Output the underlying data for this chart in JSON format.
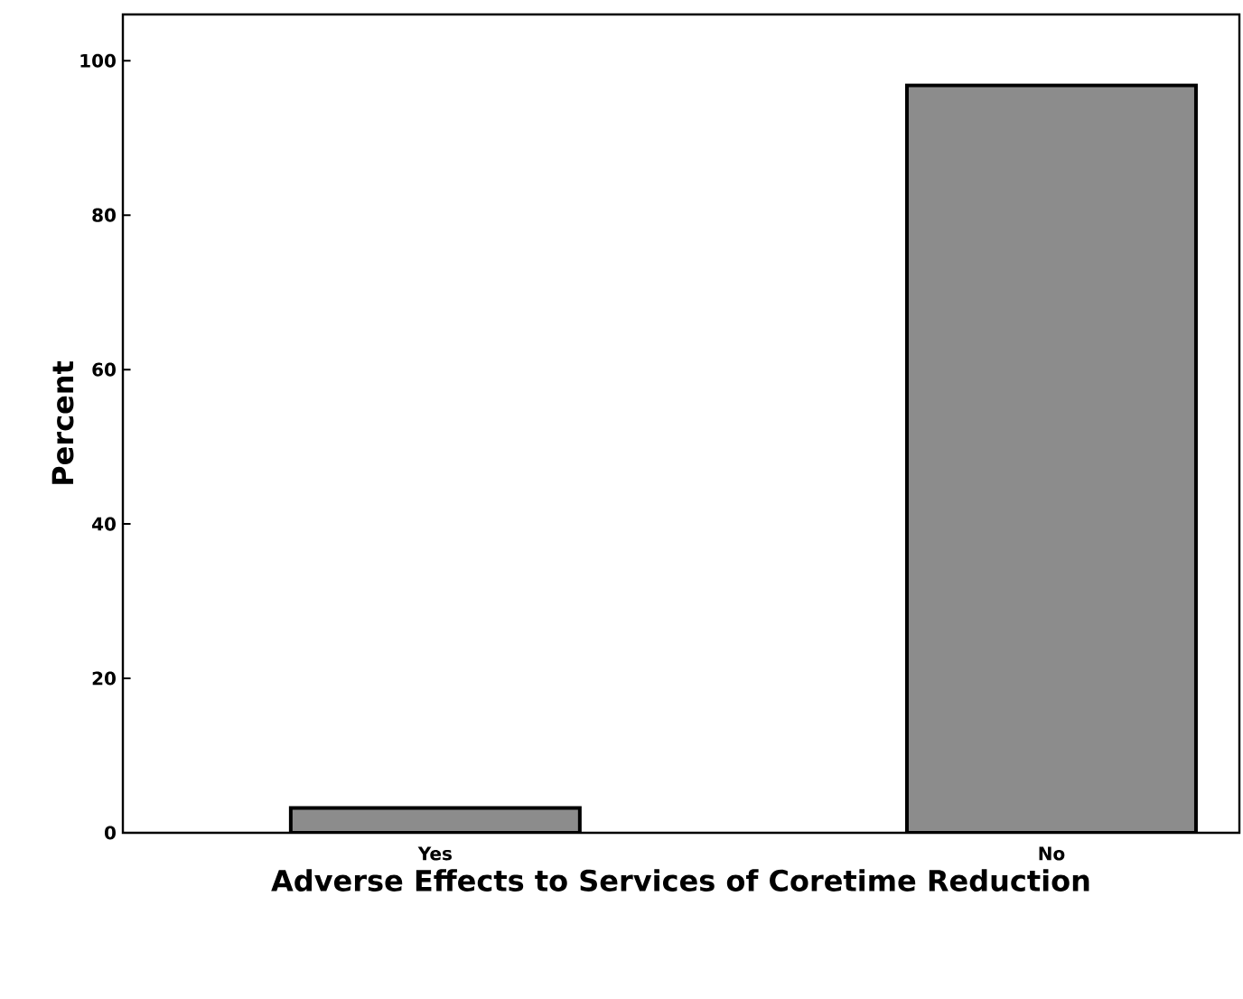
{
  "chart_data": {
    "type": "bar",
    "xlabel": "Adverse Effects to Services of Coretime Reduction",
    "ylabel": "Percent",
    "categories": [
      "Yes",
      "No"
    ],
    "values": [
      3.2,
      96.8
    ],
    "color": "#8c8c8c",
    "ylim": [
      0,
      106
    ],
    "yticks": [
      0,
      20,
      40,
      60,
      80,
      100
    ],
    "grid": false
  }
}
